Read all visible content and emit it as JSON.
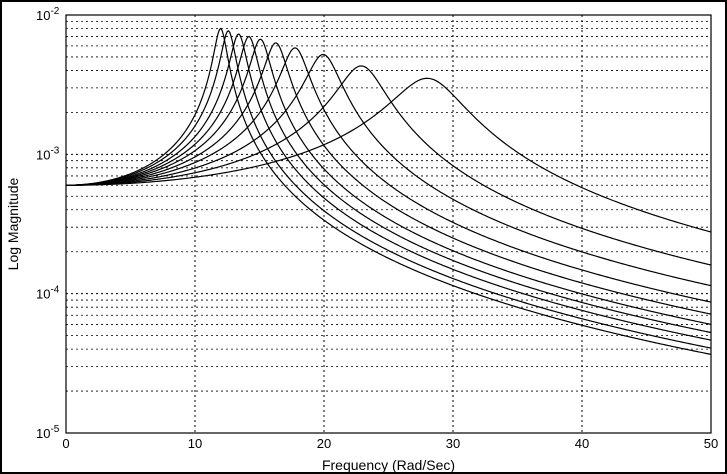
{
  "chart_data": {
    "type": "line",
    "title": "",
    "xlabel": "Frequency (Rad/Sec)",
    "ylabel": "Log Magnitude",
    "xlim": [
      0,
      50
    ],
    "ylim": [
      1e-05,
      0.01
    ],
    "yscale": "log",
    "grid": true,
    "x_ticks": [
      "0",
      "10",
      "20",
      "30",
      "40",
      "50"
    ],
    "y_ticks": [
      {
        "base": "10",
        "exp": "-5"
      },
      {
        "base": "10",
        "exp": "-4"
      },
      {
        "base": "10",
        "exp": "-3"
      },
      {
        "base": "10",
        "exp": "-2"
      }
    ],
    "dc_gain": 0.0006,
    "series": [
      {
        "peak_freq": 12.0,
        "peak_mag": 0.008
      },
      {
        "peak_freq": 12.6,
        "peak_mag": 0.0077
      },
      {
        "peak_freq": 13.4,
        "peak_mag": 0.0073
      },
      {
        "peak_freq": 14.2,
        "peak_mag": 0.007
      },
      {
        "peak_freq": 15.1,
        "peak_mag": 0.0067
      },
      {
        "peak_freq": 16.3,
        "peak_mag": 0.0063
      },
      {
        "peak_freq": 17.8,
        "peak_mag": 0.0058
      },
      {
        "peak_freq": 20.0,
        "peak_mag": 0.0052
      },
      {
        "peak_freq": 23.0,
        "peak_mag": 0.0043
      },
      {
        "peak_freq": 28.2,
        "peak_mag": 0.0035
      }
    ]
  }
}
